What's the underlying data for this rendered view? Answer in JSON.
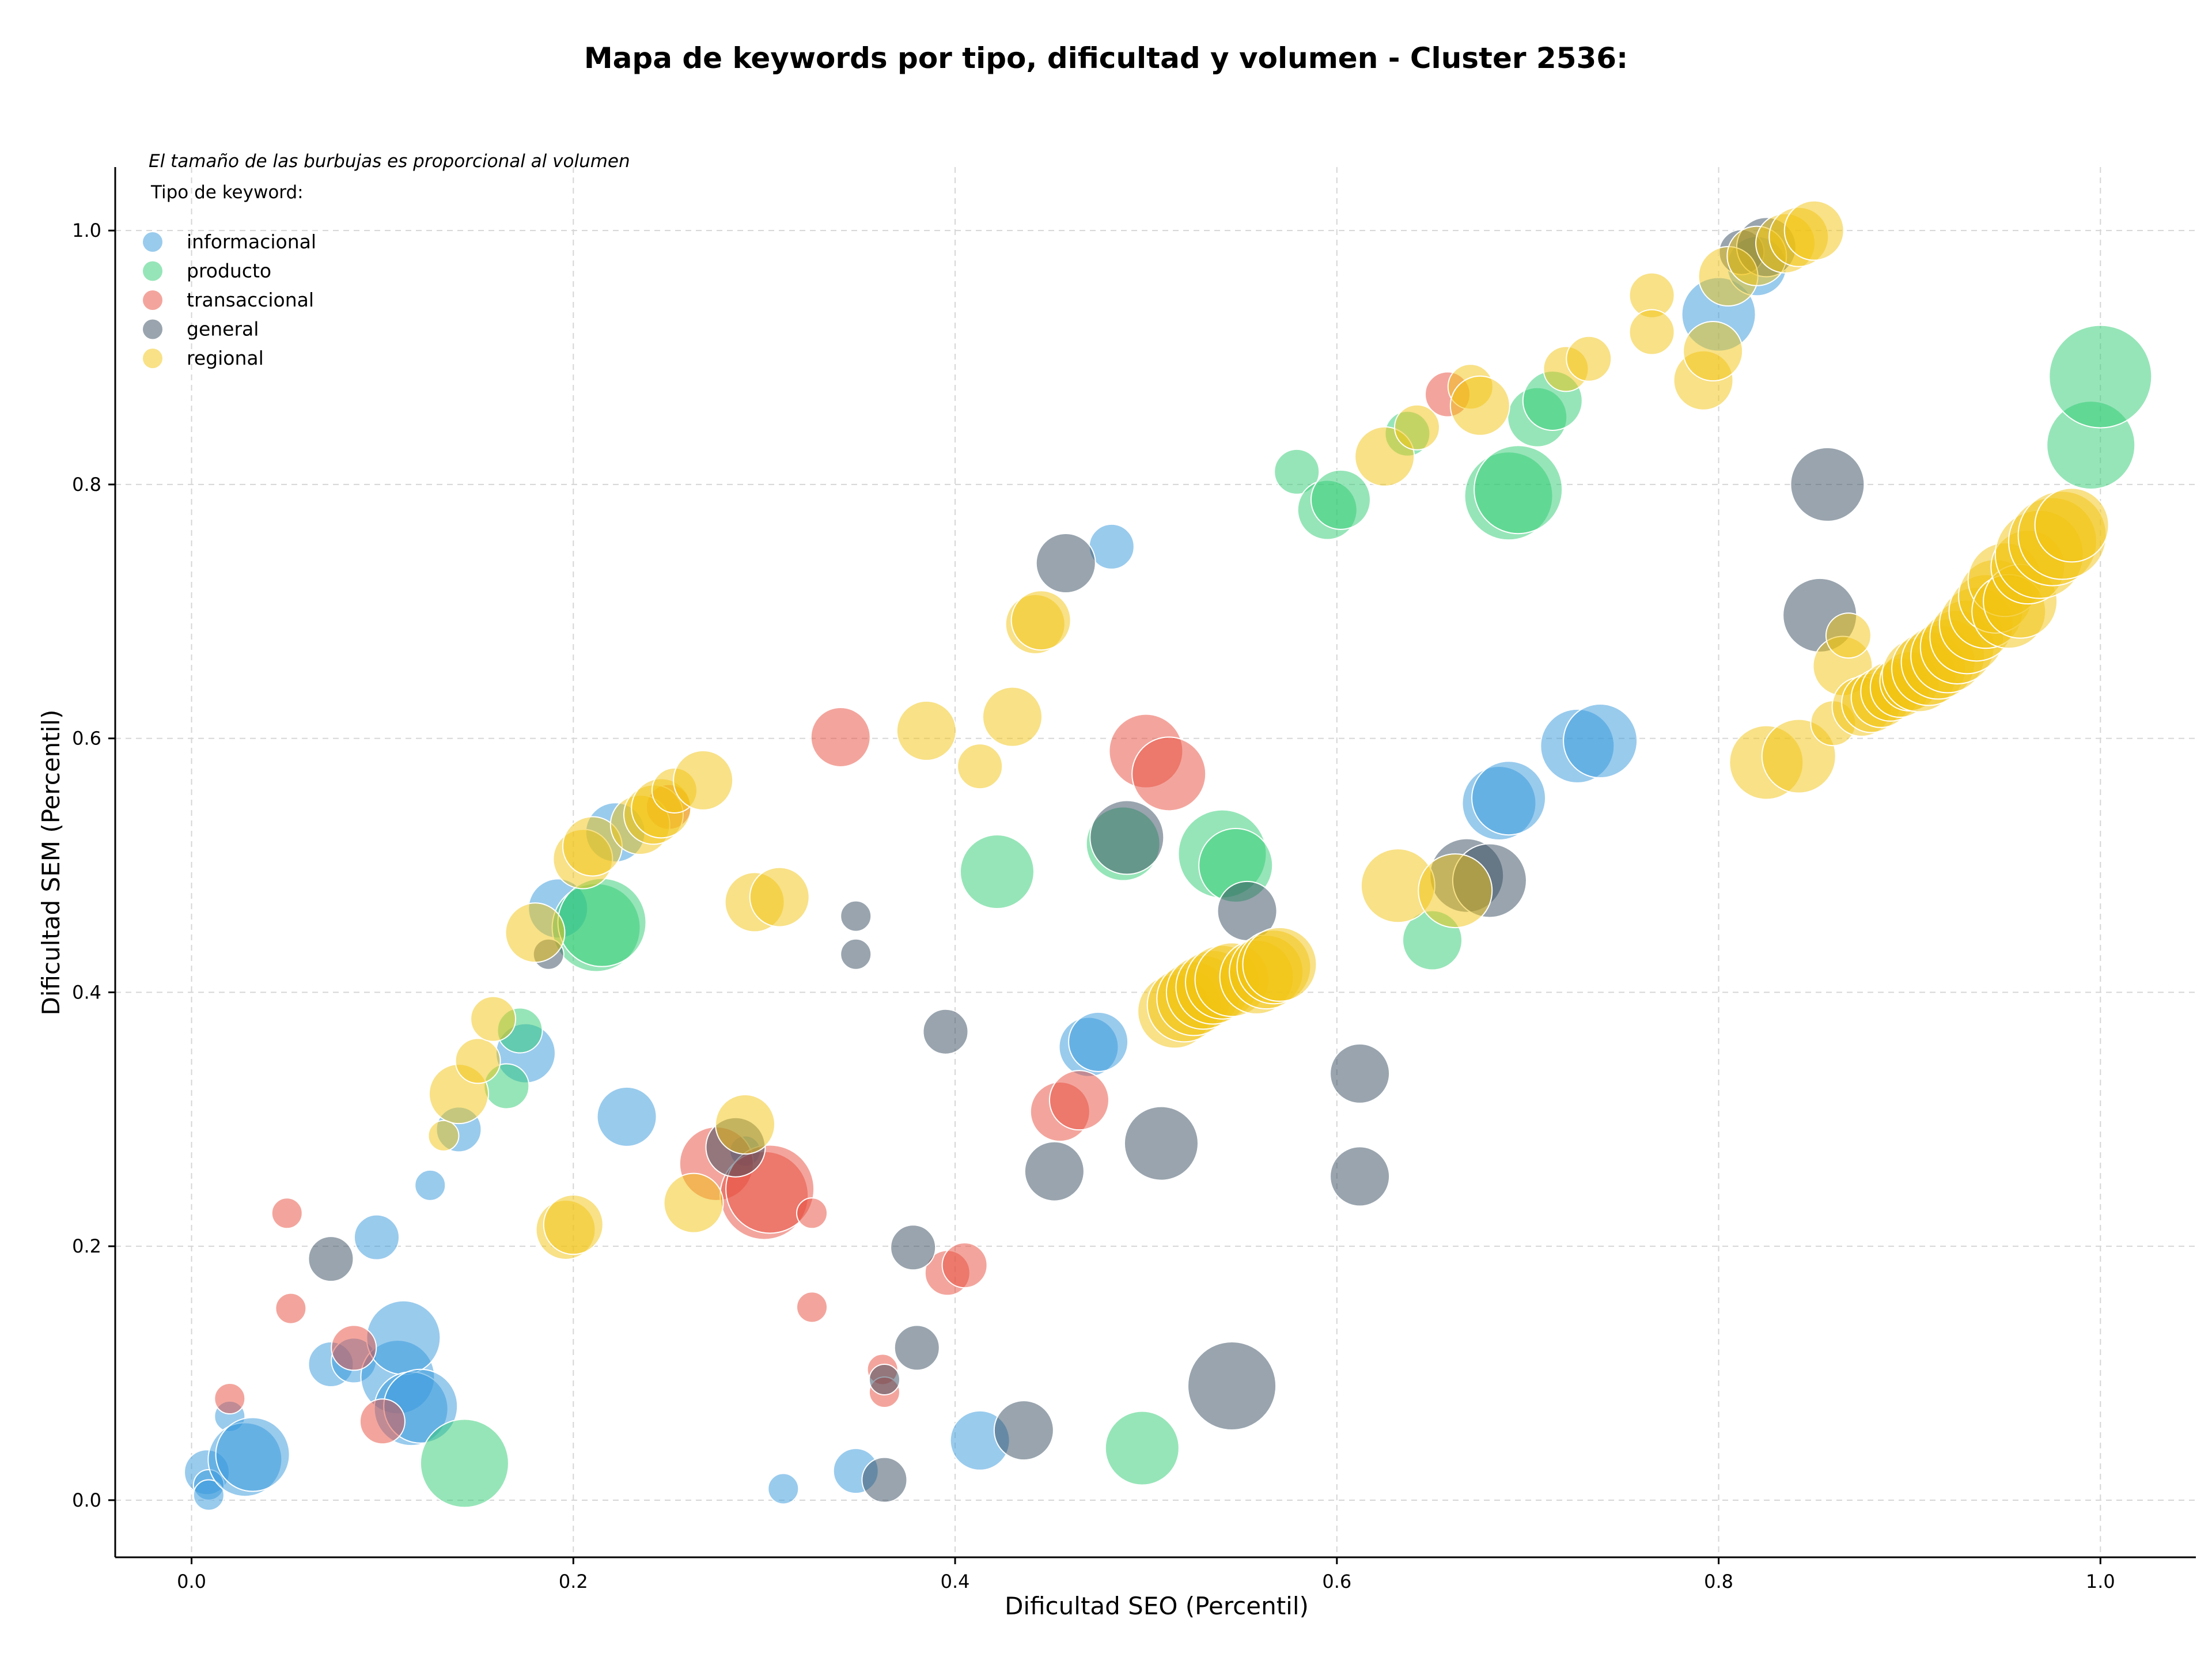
{
  "chart_data": {
    "type": "scatter",
    "title": "Mapa de keywords por tipo, dificultad y volumen - Cluster 2536:",
    "xlabel": "Dificultad SEO (Percentil)",
    "ylabel": "Dificultad SEM (Percentil)",
    "xlim": [
      -0.04,
      1.05
    ],
    "ylim": [
      -0.045,
      1.05
    ],
    "xticks": [
      0.0,
      0.2,
      0.4,
      0.6,
      0.8,
      1.0
    ],
    "xtick_labels": [
      "0.0",
      "0.2",
      "0.4",
      "0.6",
      "0.8",
      "1.0"
    ],
    "yticks": [
      0.0,
      0.2,
      0.4,
      0.6,
      0.8,
      1.0
    ],
    "ytick_labels": [
      "0.0",
      "0.2",
      "0.4",
      "0.6",
      "0.8",
      "1.0"
    ],
    "grid": true,
    "size_note": "El tamaño de las burbujas es proporcional al volumen",
    "legend_title": "Tipo de keyword:",
    "legend_position": "top-left",
    "series": [
      {
        "name": "informacional",
        "color": "#3498db",
        "points": [
          [
            0.008,
            0.022,
            2
          ],
          [
            0.009,
            0.012,
            1
          ],
          [
            0.009,
            0.004,
            1
          ],
          [
            0.02,
            0.066,
            1
          ],
          [
            0.028,
            0.032,
            4
          ],
          [
            0.032,
            0.036,
            4
          ],
          [
            0.073,
            0.107,
            2
          ],
          [
            0.085,
            0.11,
            2
          ],
          [
            0.097,
            0.207,
            2
          ],
          [
            0.108,
            0.097,
            4
          ],
          [
            0.111,
            0.128,
            4
          ],
          [
            0.115,
            0.072,
            4
          ],
          [
            0.12,
            0.074,
            4
          ],
          [
            0.125,
            0.248,
            1
          ],
          [
            0.14,
            0.292,
            2
          ],
          [
            0.175,
            0.352,
            3
          ],
          [
            0.192,
            0.466,
            3
          ],
          [
            0.222,
            0.526,
            3
          ],
          [
            0.228,
            0.302,
            3
          ],
          [
            0.29,
            0.275,
            1
          ],
          [
            0.31,
            0.009,
            1
          ],
          [
            0.348,
            0.023,
            2
          ],
          [
            0.413,
            0.047,
            3
          ],
          [
            0.47,
            0.357,
            3
          ],
          [
            0.475,
            0.361,
            3
          ],
          [
            0.482,
            0.751,
            2
          ],
          [
            0.685,
            0.549,
            4
          ],
          [
            0.69,
            0.553,
            4
          ],
          [
            0.726,
            0.594,
            4
          ],
          [
            0.738,
            0.598,
            4
          ],
          [
            0.8,
            0.934,
            4
          ],
          [
            0.82,
            0.972,
            3
          ]
        ]
      },
      {
        "name": "producto",
        "color": "#2ecc71",
        "points": [
          [
            0.143,
            0.029,
            5
          ],
          [
            0.165,
            0.326,
            2
          ],
          [
            0.172,
            0.37,
            2
          ],
          [
            0.212,
            0.451,
            5
          ],
          [
            0.215,
            0.455,
            5
          ],
          [
            0.422,
            0.495,
            4
          ],
          [
            0.488,
            0.517,
            4
          ],
          [
            0.498,
            0.041,
            4
          ],
          [
            0.54,
            0.509,
            5
          ],
          [
            0.547,
            0.5,
            4
          ],
          [
            0.579,
            0.81,
            2
          ],
          [
            0.595,
            0.78,
            3
          ],
          [
            0.602,
            0.788,
            3
          ],
          [
            0.637,
            0.84,
            2
          ],
          [
            0.65,
            0.441,
            3
          ],
          [
            0.69,
            0.791,
            5
          ],
          [
            0.695,
            0.796,
            5
          ],
          [
            0.705,
            0.853,
            3
          ],
          [
            0.713,
            0.866,
            3
          ],
          [
            0.995,
            0.831,
            5
          ],
          [
            1.0,
            0.885,
            6
          ]
        ]
      },
      {
        "name": "transaccional",
        "color": "#e74c3c",
        "points": [
          [
            0.02,
            0.08,
            1
          ],
          [
            0.05,
            0.226,
            1
          ],
          [
            0.052,
            0.151,
            1
          ],
          [
            0.085,
            0.12,
            2
          ],
          [
            0.1,
            0.062,
            2
          ],
          [
            0.25,
            0.546,
            2
          ],
          [
            0.275,
            0.265,
            4
          ],
          [
            0.3,
            0.24,
            5
          ],
          [
            0.303,
            0.245,
            5
          ],
          [
            0.325,
            0.226,
            1
          ],
          [
            0.325,
            0.152,
            1
          ],
          [
            0.34,
            0.601,
            3
          ],
          [
            0.362,
            0.103,
            1
          ],
          [
            0.363,
            0.085,
            1
          ],
          [
            0.396,
            0.179,
            2
          ],
          [
            0.405,
            0.185,
            2
          ],
          [
            0.455,
            0.306,
            3
          ],
          [
            0.465,
            0.315,
            3
          ],
          [
            0.5,
            0.59,
            4
          ],
          [
            0.512,
            0.572,
            4
          ],
          [
            0.658,
            0.871,
            2
          ]
        ]
      },
      {
        "name": "general",
        "color": "#34495e",
        "points": [
          [
            0.073,
            0.19,
            2
          ],
          [
            0.187,
            0.43,
            1
          ],
          [
            0.285,
            0.278,
            3
          ],
          [
            0.348,
            0.46,
            1
          ],
          [
            0.348,
            0.43,
            1
          ],
          [
            0.363,
            0.016,
            2
          ],
          [
            0.363,
            0.095,
            1
          ],
          [
            0.378,
            0.199,
            2
          ],
          [
            0.38,
            0.12,
            2
          ],
          [
            0.395,
            0.369,
            2
          ],
          [
            0.436,
            0.055,
            3
          ],
          [
            0.452,
            0.259,
            3
          ],
          [
            0.458,
            0.738,
            3
          ],
          [
            0.49,
            0.522,
            4
          ],
          [
            0.508,
            0.281,
            4
          ],
          [
            0.545,
            0.09,
            5
          ],
          [
            0.553,
            0.464,
            3
          ],
          [
            0.612,
            0.336,
            3
          ],
          [
            0.612,
            0.255,
            3
          ],
          [
            0.668,
            0.492,
            4
          ],
          [
            0.68,
            0.488,
            4
          ],
          [
            0.812,
            0.983,
            2
          ],
          [
            0.825,
            0.987,
            3
          ],
          [
            0.853,
            0.697,
            4
          ],
          [
            0.857,
            0.8,
            4
          ]
        ]
      },
      {
        "name": "regional",
        "color": "#f1c40f",
        "points": [
          [
            0.132,
            0.287,
            1
          ],
          [
            0.14,
            0.32,
            3
          ],
          [
            0.15,
            0.346,
            2
          ],
          [
            0.158,
            0.379,
            2
          ],
          [
            0.18,
            0.447,
            3
          ],
          [
            0.196,
            0.213,
            3
          ],
          [
            0.2,
            0.217,
            3
          ],
          [
            0.205,
            0.505,
            3
          ],
          [
            0.21,
            0.515,
            3
          ],
          [
            0.235,
            0.532,
            3
          ],
          [
            0.242,
            0.54,
            3
          ],
          [
            0.246,
            0.545,
            3
          ],
          [
            0.253,
            0.559,
            2
          ],
          [
            0.268,
            0.567,
            3
          ],
          [
            0.263,
            0.234,
            3
          ],
          [
            0.29,
            0.296,
            3
          ],
          [
            0.295,
            0.471,
            3
          ],
          [
            0.308,
            0.475,
            3
          ],
          [
            0.385,
            0.606,
            3
          ],
          [
            0.413,
            0.578,
            2
          ],
          [
            0.442,
            0.69,
            3
          ],
          [
            0.445,
            0.693,
            3
          ],
          [
            0.43,
            0.617,
            3
          ],
          [
            0.515,
            0.385,
            4
          ],
          [
            0.52,
            0.39,
            4
          ],
          [
            0.525,
            0.395,
            4
          ],
          [
            0.53,
            0.4,
            4
          ],
          [
            0.535,
            0.404,
            4
          ],
          [
            0.54,
            0.408,
            4
          ],
          [
            0.545,
            0.41,
            4
          ],
          [
            0.558,
            0.412,
            4
          ],
          [
            0.563,
            0.416,
            4
          ],
          [
            0.567,
            0.42,
            4
          ],
          [
            0.57,
            0.422,
            4
          ],
          [
            0.625,
            0.822,
            3
          ],
          [
            0.632,
            0.484,
            4
          ],
          [
            0.642,
            0.845,
            2
          ],
          [
            0.662,
            0.48,
            4
          ],
          [
            0.67,
            0.877,
            2
          ],
          [
            0.675,
            0.862,
            3
          ],
          [
            0.72,
            0.891,
            2
          ],
          [
            0.732,
            0.899,
            2
          ],
          [
            0.765,
            0.949,
            2
          ],
          [
            0.765,
            0.92,
            2
          ],
          [
            0.792,
            0.882,
            3
          ],
          [
            0.797,
            0.905,
            3
          ],
          [
            0.805,
            0.964,
            3
          ],
          [
            0.82,
            0.98,
            3
          ],
          [
            0.835,
            0.99,
            3
          ],
          [
            0.842,
            0.995,
            3
          ],
          [
            0.85,
            1.0,
            3
          ],
          [
            0.825,
            0.581,
            4
          ],
          [
            0.842,
            0.586,
            4
          ],
          [
            0.86,
            0.612,
            2
          ],
          [
            0.865,
            0.657,
            3
          ],
          [
            0.868,
            0.681,
            2
          ],
          [
            0.875,
            0.625,
            3
          ],
          [
            0.88,
            0.628,
            3
          ],
          [
            0.885,
            0.632,
            3
          ],
          [
            0.89,
            0.637,
            3
          ],
          [
            0.895,
            0.64,
            3
          ],
          [
            0.9,
            0.645,
            3
          ],
          [
            0.905,
            0.65,
            4
          ],
          [
            0.91,
            0.655,
            4
          ],
          [
            0.915,
            0.66,
            4
          ],
          [
            0.92,
            0.665,
            4
          ],
          [
            0.925,
            0.672,
            4
          ],
          [
            0.93,
            0.68,
            4
          ],
          [
            0.935,
            0.69,
            4
          ],
          [
            0.94,
            0.7,
            4
          ],
          [
            0.945,
            0.712,
            4
          ],
          [
            0.95,
            0.725,
            4
          ],
          [
            0.952,
            0.7,
            4
          ],
          [
            0.958,
            0.708,
            4
          ],
          [
            0.962,
            0.735,
            4
          ],
          [
            0.968,
            0.745,
            5
          ],
          [
            0.975,
            0.755,
            5
          ],
          [
            0.98,
            0.76,
            5
          ],
          [
            0.985,
            0.768,
            4
          ]
        ]
      }
    ]
  }
}
